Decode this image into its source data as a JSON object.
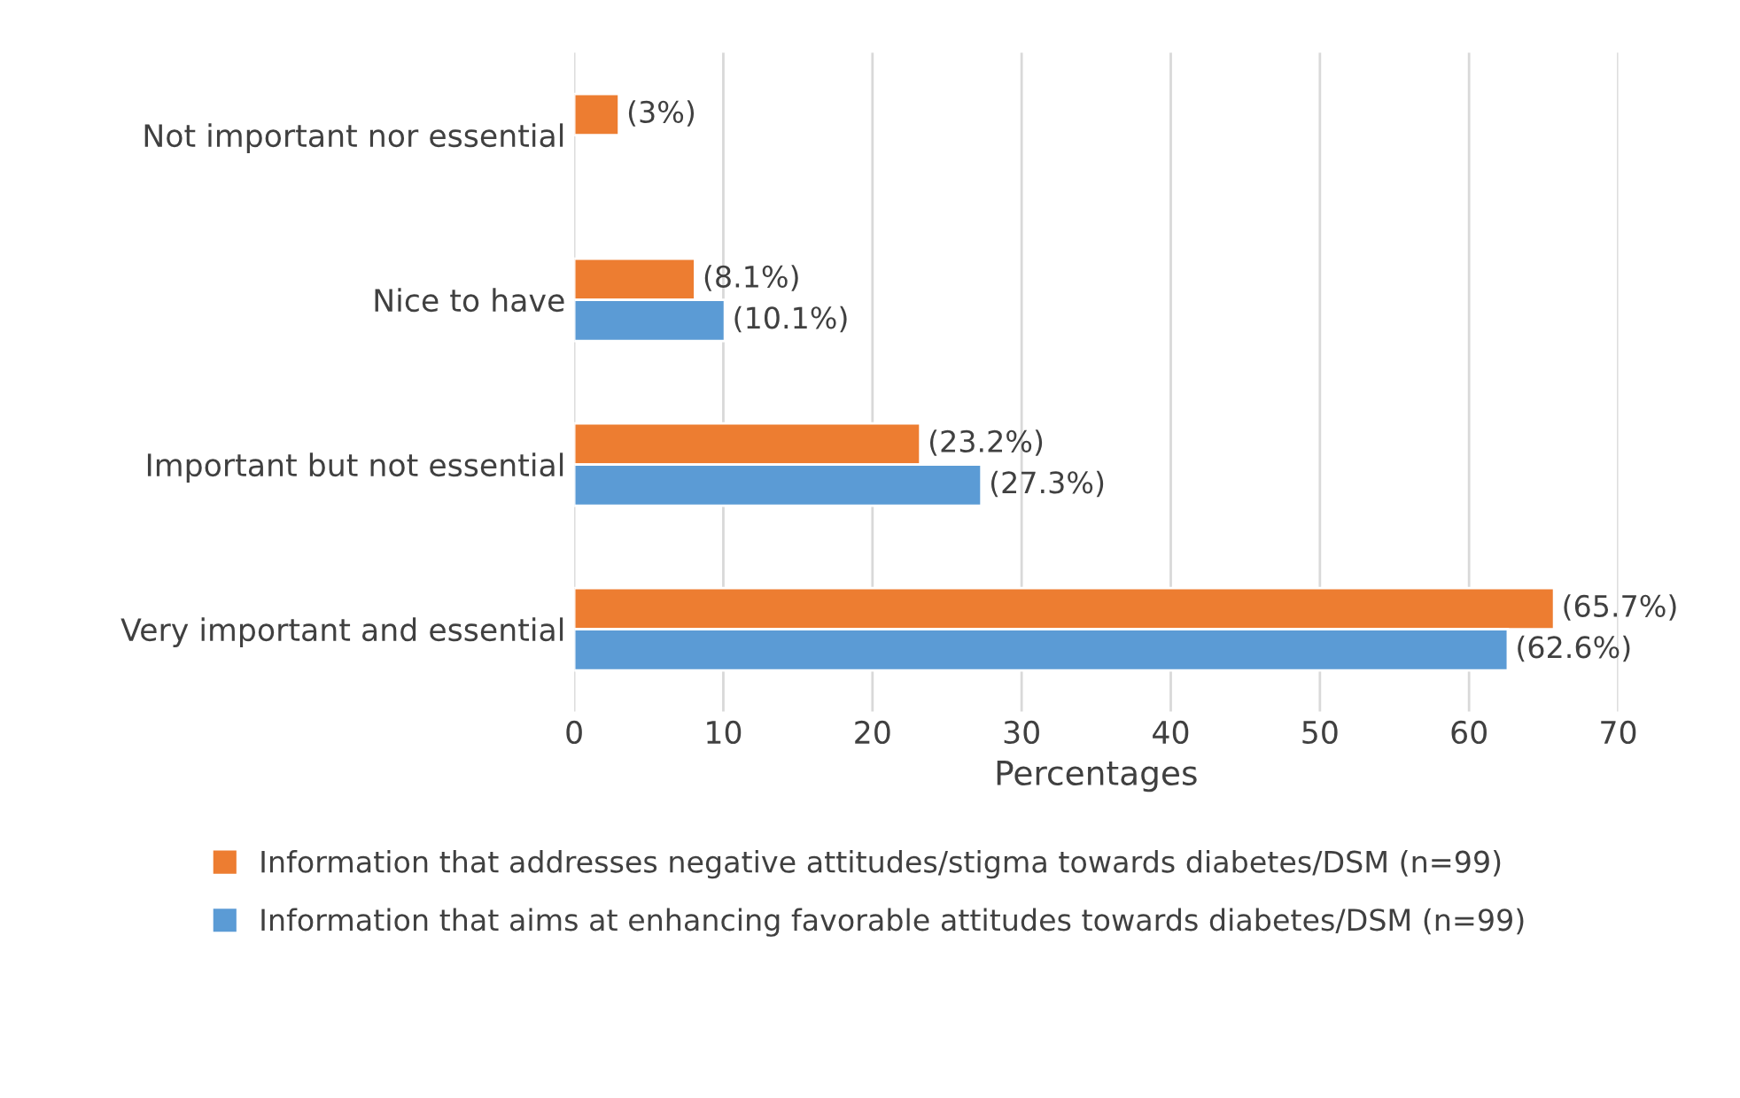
{
  "chart_data": {
    "type": "bar",
    "orientation": "horizontal",
    "categories": [
      "Not important nor essential",
      "Nice to have",
      "Important but not essential",
      "Very important and essential"
    ],
    "series": [
      {
        "name": "Information that addresses negative attitudes/stigma towards diabetes/DSM (n=99)",
        "color": "#ed7d31",
        "values": [
          3,
          8.1,
          23.2,
          65.7
        ],
        "value_labels": [
          "(3%)",
          "(8.1%)",
          "(23.2%)",
          "(65.7%)"
        ]
      },
      {
        "name": "Information that aims at enhancing favorable attitudes towards diabetes/DSM (n=99)",
        "color": "#5b9bd5",
        "values": [
          null,
          10.1,
          27.3,
          62.6
        ],
        "value_labels": [
          null,
          "(10.1%)",
          "(27.3%)",
          "(62.6%)"
        ]
      }
    ],
    "xlabel": "Percentages",
    "xlim": [
      0,
      70
    ],
    "xticks": [
      0,
      10,
      20,
      30,
      40,
      50,
      60,
      70
    ],
    "grid": "x",
    "legend": "bottom"
  }
}
